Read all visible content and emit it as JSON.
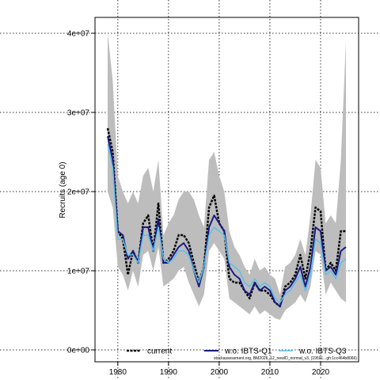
{
  "chart_data": {
    "type": "line",
    "ylabel": "Recruits (age 0)",
    "xlabel": "",
    "xlim": [
      1975.5,
      2027.5
    ],
    "ylim": [
      -1500000,
      42000000
    ],
    "x_ticks": [
      1980,
      1990,
      2000,
      2010,
      2020
    ],
    "x_tick_labels": [
      "1980",
      "1990",
      "2000",
      "2010",
      "2020"
    ],
    "y_ticks": [
      0,
      10000000,
      20000000,
      30000000,
      40000000
    ],
    "y_tick_labels": [
      "0e+00",
      "1e+07",
      "2e+07",
      "3e+07",
      "4e+07"
    ],
    "grid": true,
    "years": [
      1978,
      1979,
      1980,
      1981,
      1982,
      1983,
      1984,
      1985,
      1986,
      1987,
      1988,
      1989,
      1990,
      1991,
      1992,
      1993,
      1994,
      1995,
      1996,
      1997,
      1998,
      1999,
      2000,
      2001,
      2002,
      2003,
      2004,
      2005,
      2006,
      2007,
      2008,
      2009,
      2010,
      2011,
      2012,
      2013,
      2014,
      2015,
      2016,
      2017,
      2018,
      2019,
      2020,
      2021,
      2022,
      2023,
      2024,
      2025
    ],
    "confidence_band": {
      "upper": [
        40000000,
        34000000,
        22000000,
        20000000,
        18500000,
        20000000,
        18500000,
        22000000,
        23000000,
        20000000,
        24000000,
        14500000,
        16000000,
        17000000,
        19000000,
        20000000,
        20000000,
        19000000,
        17000000,
        15500000,
        24000000,
        25000000,
        22000000,
        20000000,
        15000000,
        13000000,
        12000000,
        10500000,
        9500000,
        11500000,
        10000000,
        10500000,
        9500000,
        9000000,
        7000000,
        10500000,
        11000000,
        12000000,
        14000000,
        12000000,
        17000000,
        24000000,
        23000000,
        16000000,
        17000000,
        16000000,
        24000000,
        39000000
      ],
      "lower": [
        20000000,
        18000000,
        10500000,
        9500000,
        7500000,
        10000000,
        8000000,
        12000000,
        12500000,
        10000000,
        13000000,
        8000000,
        8500000,
        9000000,
        10000000,
        10500000,
        8500000,
        7000000,
        5500000,
        7000000,
        12500000,
        13500000,
        12500000,
        11500000,
        6500000,
        6000000,
        5500000,
        5000000,
        4500000,
        5500000,
        4500000,
        5000000,
        4500000,
        4000000,
        3800000,
        5000000,
        5500000,
        6000000,
        7000000,
        6000000,
        8000000,
        12500000,
        12000000,
        7000000,
        8500000,
        7500000,
        6500000,
        6000000
      ]
    },
    "series": [
      {
        "name": "current",
        "color": "#000000",
        "values": [
          28000000,
          25000000,
          15000000,
          14000000,
          9500000,
          12500000,
          11000000,
          16000000,
          17000000,
          12500000,
          18500000,
          11000000,
          11500000,
          12500000,
          14500000,
          14500000,
          13500000,
          11000000,
          8500000,
          10500000,
          18000000,
          19500000,
          16000000,
          15000000,
          9000000,
          8500000,
          8500000,
          7500000,
          6500000,
          8500000,
          7500000,
          7500000,
          7000000,
          6000000,
          5500000,
          8000000,
          8500000,
          9500000,
          12000000,
          9000000,
          12500000,
          18000000,
          17500000,
          10000000,
          11000000,
          10000000,
          15000000,
          15000000
        ]
      },
      {
        "name": "w.o. IBTS-Q1",
        "color": "#1a1a80",
        "values": [
          27000000,
          24000000,
          15000000,
          14500000,
          11500000,
          12500000,
          11000000,
          15500000,
          15500000,
          12500000,
          16500000,
          11000000,
          11000000,
          12000000,
          13000000,
          13500000,
          12500000,
          10000000,
          8000000,
          10500000,
          15500000,
          17000000,
          16000000,
          15000000,
          10500000,
          9500000,
          9000000,
          7500000,
          7000000,
          8500000,
          7500000,
          8000000,
          7500000,
          6000000,
          5500000,
          7500000,
          8000000,
          9000000,
          10500000,
          8000000,
          10500000,
          15500000,
          15000000,
          10000000,
          10500000,
          9500000,
          12500000,
          13000000
        ]
      },
      {
        "name": "w.o. IBTS-Q3",
        "color": "#5bc0eb",
        "values": [
          26000000,
          23000000,
          14000000,
          14000000,
          12000000,
          12000000,
          11000000,
          14500000,
          14500000,
          12500000,
          15500000,
          11500000,
          11000000,
          11500000,
          12500000,
          12500000,
          12000000,
          10000000,
          8500000,
          10500000,
          14500000,
          15500000,
          15000000,
          14500000,
          11000000,
          10500000,
          10000000,
          8500000,
          8000000,
          9000000,
          8000000,
          8500000,
          8000000,
          6500000,
          6000000,
          7000000,
          7500000,
          8500000,
          9500000,
          7500000,
          9500000,
          14000000,
          13500000,
          9500000,
          10000000,
          9000000,
          11000000,
          11500000
        ]
      }
    ],
    "legend": {
      "placement": "bottom",
      "entries": [
        "current",
        "w.o. IBTS-Q1",
        "w.o. IBTS-Q3"
      ]
    },
    "footnote": "stockassessment.org, BM2026_12_newID_normal_v3, (19591...gh:1cc464b8066)"
  }
}
